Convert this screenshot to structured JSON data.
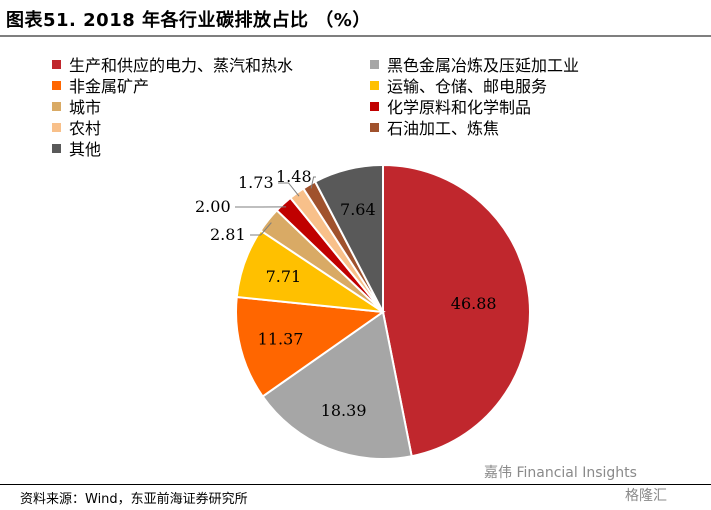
{
  "header": {
    "title": "图表51. 2018 年各行业碳排放占比 （%）"
  },
  "chart_data": {
    "type": "pie",
    "title": "2018 年各行业碳排放占比 （%）",
    "slices": [
      {
        "name": "生产和供应的电力、蒸汽和热水",
        "value": 46.88,
        "label": "46.88",
        "color": "#c0272d"
      },
      {
        "name": "黑色金属冶炼及压延加工业",
        "value": 18.39,
        "label": "18.39",
        "color": "#a6a6a6"
      },
      {
        "name": "非金属矿产",
        "value": 11.37,
        "label": "11.37",
        "color": "#ff6600"
      },
      {
        "name": "运输、仓储、邮电服务",
        "value": 7.71,
        "label": "7.71",
        "color": "#ffc000"
      },
      {
        "name": "城市",
        "value": 2.81,
        "label": "2.81",
        "color": "#d9aa65"
      },
      {
        "name": "化学原料和化学制品",
        "value": 2.0,
        "label": "2.00",
        "color": "#c00000"
      },
      {
        "name": "农村",
        "value": 1.73,
        "label": "1.73",
        "color": "#f8c08a"
      },
      {
        "name": "石油加工、炼焦",
        "value": 1.48,
        "label": "1.48",
        "color": "#a0522d"
      },
      {
        "name": "其他",
        "value": 7.64,
        "label": "7.64",
        "color": "#595959"
      }
    ],
    "legend": "top"
  },
  "legend_items": [
    {
      "label": "生产和供应的电力、蒸汽和热水",
      "color": "#c0272d"
    },
    {
      "label": "黑色金属冶炼及压延加工业",
      "color": "#a6a6a6"
    },
    {
      "label": "非金属矿产",
      "color": "#ff6600"
    },
    {
      "label": "运输、仓储、邮电服务",
      "color": "#ffc000"
    },
    {
      "label": "城市",
      "color": "#d9aa65"
    },
    {
      "label": "化学原料和化学制品",
      "color": "#c00000"
    },
    {
      "label": "农村",
      "color": "#f8c08a"
    },
    {
      "label": "石油加工、炼焦",
      "color": "#a0522d"
    },
    {
      "label": "其他",
      "color": "#595959"
    }
  ],
  "footer": {
    "source": "资料来源：Wind，东亚前海证券研究所"
  },
  "watermark": {
    "text": "嘉伟 Financial Insights",
    "text2": "格隆汇"
  }
}
